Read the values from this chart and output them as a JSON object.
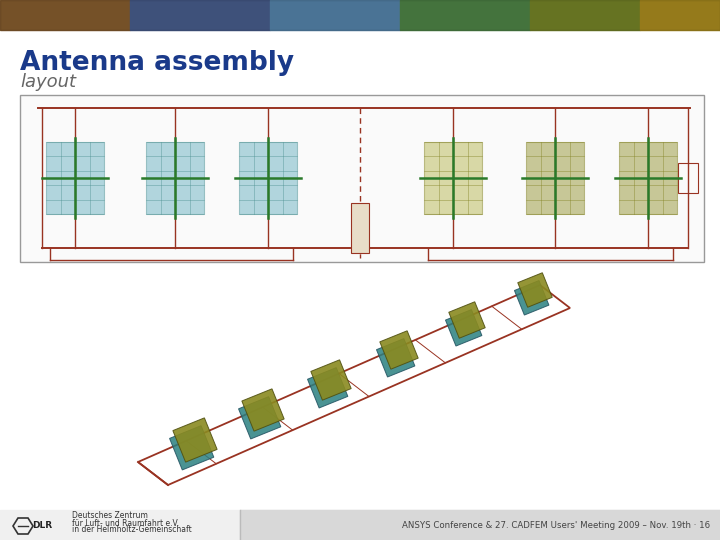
{
  "title": "Antenna assembly",
  "subtitle": "layout",
  "title_color": "#1a3a8a",
  "subtitle_color": "#555555",
  "footer_text": "ANSYS Conference & 27. CADFEM Users' Meeting 2009 – Nov. 19th · 16",
  "footer_color": "#444444",
  "bg_color": "#ffffff",
  "antenna_red": "#993322",
  "antenna_green": "#2a7a2a",
  "antenna_cyan": "#5aaabb",
  "antenna_olive": "#8a8a20",
  "antenna_teal": "#2a8080",
  "antenna_olive2": "#a0a030",
  "header_img_colors": [
    "#b06010",
    "#7850a0",
    "#3868b0",
    "#509040",
    "#788010",
    "#a09020"
  ],
  "box_border": "#999999",
  "box_bg": "#fafafa",
  "footer_left_bg": "#e8e8e8",
  "footer_right_bg": "#d0d0d0"
}
